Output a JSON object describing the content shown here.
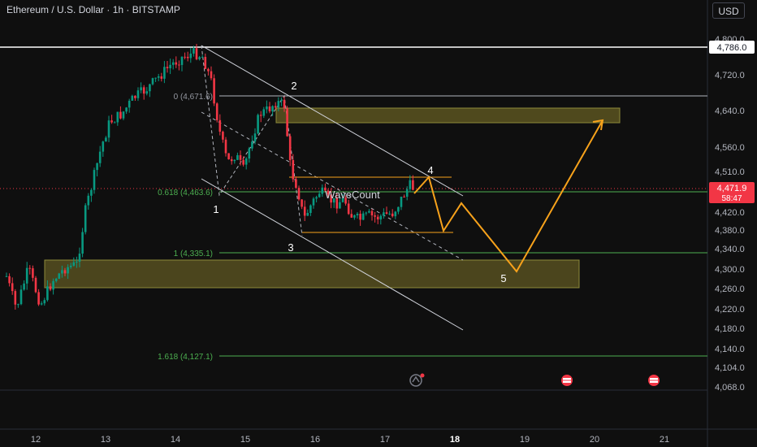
{
  "header": {
    "title": "Ethereum / U.S. Dollar · 1h · BITSTAMP",
    "currency_label": "USD"
  },
  "price_axis": {
    "ticks": [
      "4,800.0",
      "4,720.0",
      "4,640.0",
      "4,560.0",
      "4,510.0",
      "4,420.0",
      "4,380.0",
      "4,340.0",
      "4,300.0",
      "4,260.0",
      "4,220.0",
      "4,180.0",
      "4,140.0",
      "4,104.0",
      "4,068.0"
    ],
    "highlight_label": "4,786.0",
    "current_price": "4,471.9",
    "countdown": "58:47"
  },
  "time_axis": {
    "ticks": [
      "12",
      "13",
      "14",
      "15",
      "16",
      "17",
      "18",
      "19",
      "20",
      "21"
    ],
    "highlight": "18"
  },
  "fib_levels": {
    "level_0": "0 (4,671.6)",
    "level_0618": "0.618 (4,463.6)",
    "level_1": "1 (4,335.1)",
    "level_1618": "1.618 (4,127.1)"
  },
  "wave_labels": {
    "w1": "1",
    "w2": "2",
    "w3": "3",
    "w4": "4",
    "w5": "5",
    "watermark": "WaveCount"
  },
  "colors": {
    "background": "#0f0f0f",
    "candle_up": "#089981",
    "candle_down": "#f23645",
    "fib_line": "#4caf50",
    "zone_fill": "#5a5320",
    "projection": "#f7a21b",
    "channel": "#d1d4dc"
  },
  "icons": [
    "replay-icon",
    "us-flag-icon",
    "us-flag-icon"
  ]
}
